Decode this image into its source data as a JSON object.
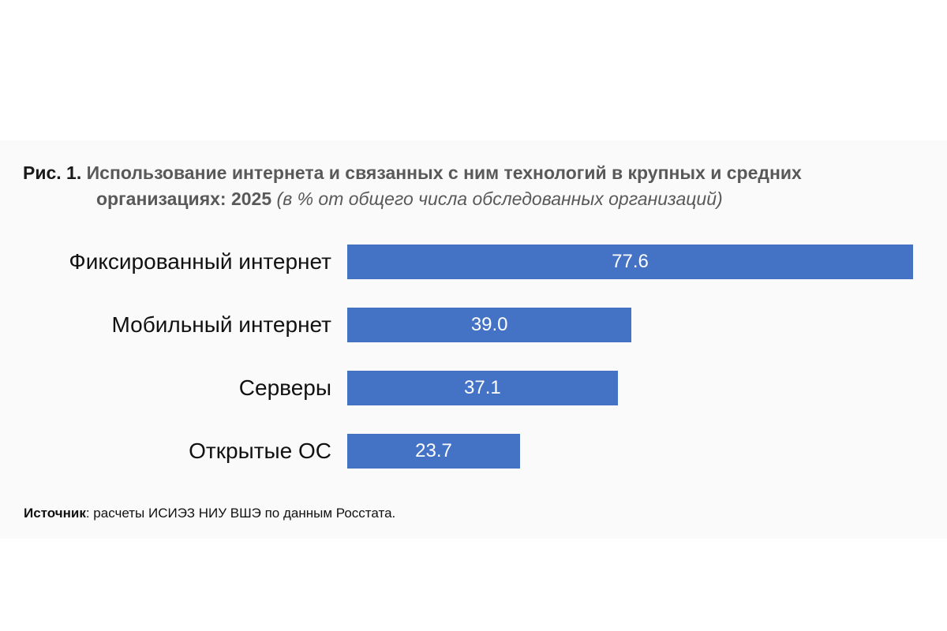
{
  "figure": {
    "label": "Рис. 1.",
    "title_line1": "Использование интернета и связанных с ним технологий в крупных и средних",
    "title_line2": "организациях: 2025",
    "subtitle": "(в % от общего числа обследованных организаций)"
  },
  "chart_data": {
    "type": "bar",
    "orientation": "horizontal",
    "categories": [
      "Фиксированный интернет",
      "Мобильный интернет",
      "Серверы",
      "Открытые ОС"
    ],
    "values": [
      77.6,
      39.0,
      37.1,
      23.7
    ],
    "value_labels": [
      "77.6",
      "39.0",
      "37.1",
      "23.7"
    ],
    "xlim": [
      0,
      80
    ],
    "grid": false,
    "legend": "none",
    "bar_color": "#4472c4"
  },
  "source": {
    "label": "Источник",
    "text": ": расчеты ИСИЭЗ НИУ ВШЭ по данным Росстата."
  }
}
